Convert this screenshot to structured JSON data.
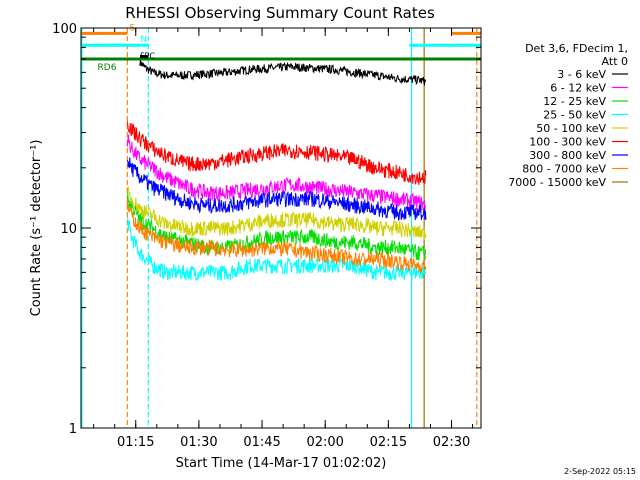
{
  "chart_data": {
    "type": "line",
    "title": "RHESSI Observing Summary Count Rates",
    "xlabel": "Start Time (14-Mar-17 01:02:02)",
    "ylabel": "Count Rate (s⁻¹ detector⁻¹)",
    "y_scale": "log",
    "ylim": [
      1,
      100
    ],
    "x_units": "minutes after 01:02:02",
    "xlim": [
      0,
      95
    ],
    "x_ticks": [
      {
        "value": 13,
        "label": "01:15"
      },
      {
        "value": 28,
        "label": "01:30"
      },
      {
        "value": 43,
        "label": "01:45"
      },
      {
        "value": 58,
        "label": "02:00"
      },
      {
        "value": 73,
        "label": "02:15"
      },
      {
        "value": 88,
        "label": "02:30"
      }
    ],
    "y_ticks": [
      {
        "value": 1,
        "label": "1"
      },
      {
        "value": 10,
        "label": "10"
      },
      {
        "value": 100,
        "label": "100"
      }
    ],
    "legend_header": [
      "Det 3,6, FDecim 1,",
      "Att 0"
    ],
    "legend_placement": "right",
    "flags": [
      {
        "name": "S",
        "color": "#ff8000",
        "y": 94,
        "segments": [
          [
            0,
            11
          ],
          [
            88,
            95
          ]
        ]
      },
      {
        "name": "N",
        "color": "#00ffff",
        "y": 82,
        "segments": [
          [
            0,
            16
          ],
          [
            78,
            95
          ]
        ]
      },
      {
        "name": "RD6",
        "color": "#008000",
        "y": 70,
        "segments": [
          [
            0,
            95
          ]
        ]
      },
      {
        "name": "FPC",
        "color": "#000000",
        "y": 72,
        "segments": [
          [
            14,
            16
          ]
        ]
      }
    ],
    "vlines": [
      {
        "x": 0.2,
        "color": "#00ffff",
        "style": "solid"
      },
      {
        "x": 11,
        "color": "#ff8000",
        "style": "dashed"
      },
      {
        "x": 16,
        "color": "#00ffff",
        "style": "dashed"
      },
      {
        "x": 78.5,
        "color": "#00ffff",
        "style": "solid"
      },
      {
        "x": 81.5,
        "color": "#a07000",
        "style": "solid"
      },
      {
        "x": 94,
        "color": "#ff8000",
        "style": "dashed"
      }
    ],
    "series": [
      {
        "name": "3 - 6 keV",
        "color": "#000000",
        "x": [
          14,
          15,
          17,
          20,
          25,
          30,
          35,
          40,
          45,
          50,
          55,
          60,
          65,
          70,
          75,
          80,
          82
        ],
        "y": [
          68,
          64,
          60,
          58,
          58,
          59,
          60,
          62,
          63,
          64,
          63,
          62,
          60,
          58,
          56,
          55,
          54
        ]
      },
      {
        "name": "6 - 12 keV",
        "color": "#ff00ff",
        "x": [
          11,
          12,
          14,
          17,
          20,
          25,
          30,
          35,
          40,
          45,
          50,
          55,
          60,
          65,
          70,
          75,
          80,
          82
        ],
        "y": [
          28,
          25,
          22,
          20,
          18,
          16,
          15,
          15,
          15.5,
          16,
          16.5,
          16,
          15.5,
          15,
          14.5,
          14,
          13.5,
          13
        ]
      },
      {
        "name": "12 - 25 keV",
        "color": "#00e000",
        "x": [
          11,
          12,
          14,
          17,
          20,
          25,
          30,
          35,
          40,
          45,
          50,
          55,
          60,
          65,
          70,
          75,
          80,
          82
        ],
        "y": [
          14,
          13,
          11,
          10,
          9,
          8.5,
          8,
          8,
          8.5,
          9,
          9,
          9,
          8.5,
          8.5,
          8,
          8,
          7.5,
          7.5
        ]
      },
      {
        "name": "25 - 50 keV",
        "color": "#00ffff",
        "x": [
          11,
          12,
          14,
          17,
          20,
          25,
          30,
          35,
          40,
          45,
          50,
          55,
          60,
          65,
          70,
          75,
          80,
          82
        ],
        "y": [
          11,
          9,
          7.5,
          6.5,
          6,
          6,
          6,
          6,
          6.5,
          6.5,
          6.5,
          6.5,
          6.5,
          6.5,
          6,
          6,
          6,
          6
        ]
      },
      {
        "name": "50 - 100 keV",
        "color": "#d0d000",
        "x": [
          11,
          12,
          14,
          17,
          20,
          25,
          30,
          35,
          40,
          45,
          50,
          55,
          60,
          65,
          70,
          75,
          80,
          82
        ],
        "y": [
          15,
          14,
          12.5,
          11.5,
          10.5,
          10,
          10,
          10,
          10.5,
          11,
          11,
          11,
          10.5,
          10.5,
          10,
          10,
          9.5,
          9.5
        ]
      },
      {
        "name": "100 - 300 keV",
        "color": "#ff0000",
        "x": [
          11,
          12,
          14,
          17,
          20,
          25,
          30,
          35,
          40,
          45,
          50,
          55,
          60,
          65,
          70,
          75,
          80,
          82
        ],
        "y": [
          34,
          31,
          28,
          25,
          23,
          21,
          21,
          22,
          23,
          24,
          24.5,
          24,
          23,
          22,
          20,
          19,
          18,
          18
        ]
      },
      {
        "name": "300 - 800 keV",
        "color": "#0000ff",
        "x": [
          11,
          12,
          14,
          17,
          20,
          25,
          30,
          35,
          40,
          45,
          50,
          55,
          60,
          65,
          70,
          75,
          80,
          82
        ],
        "y": [
          22,
          20,
          18,
          16,
          15,
          13.5,
          13,
          13,
          13.5,
          14,
          14,
          14,
          13.5,
          13,
          12.5,
          12,
          12,
          12
        ]
      },
      {
        "name": "800 - 7000 keV",
        "color": "#ff8000",
        "x": [
          11,
          12,
          14,
          17,
          20,
          25,
          30,
          35,
          40,
          45,
          50,
          55,
          60,
          65,
          70,
          75,
          80,
          82
        ],
        "y": [
          13,
          11.5,
          10,
          9,
          8.5,
          8,
          8,
          7.8,
          7.8,
          8,
          7.8,
          7.5,
          7.3,
          7,
          7,
          6.8,
          6.5,
          6.5
        ]
      },
      {
        "name": "7000 - 15000 keV",
        "color": "#a07000",
        "x": [],
        "y": []
      }
    ]
  },
  "footer": {
    "date": "2-Sep-2022 05:15"
  }
}
